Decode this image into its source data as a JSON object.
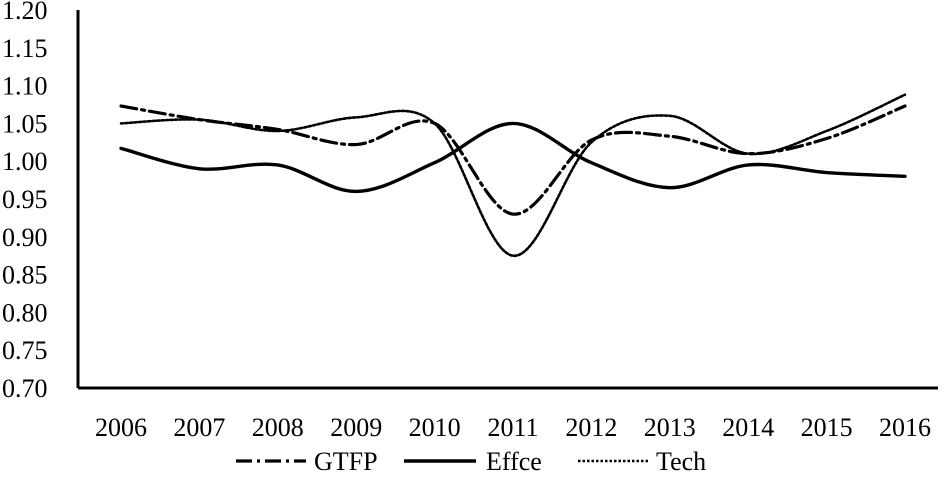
{
  "chart_data": {
    "type": "line",
    "title": "",
    "xlabel": "",
    "ylabel": "",
    "categories": [
      "2006",
      "2007",
      "2008",
      "2009",
      "2010",
      "2011",
      "2012",
      "2013",
      "2014",
      "2015",
      "2016"
    ],
    "ylim": [
      0.7,
      1.2
    ],
    "yticks": [
      "0.70",
      "0.75",
      "0.80",
      "0.85",
      "0.90",
      "0.95",
      "1.00",
      "1.05",
      "1.10",
      "1.15",
      "1.20"
    ],
    "grid": false,
    "legend_position": "bottom",
    "series": [
      {
        "name": "GTFP",
        "style": "dash-dot",
        "color": "#000000",
        "values": [
          1.073,
          1.055,
          1.042,
          1.022,
          1.05,
          0.93,
          1.028,
          1.033,
          1.01,
          1.03,
          1.073
        ]
      },
      {
        "name": "Effce",
        "style": "solid",
        "color": "#000000",
        "values": [
          1.017,
          0.99,
          0.995,
          0.96,
          0.998,
          1.05,
          0.998,
          0.965,
          0.995,
          0.985,
          0.98
        ]
      },
      {
        "name": "Tech",
        "style": "dotted",
        "color": "#000000",
        "values": [
          1.05,
          1.055,
          1.04,
          1.058,
          1.05,
          0.875,
          1.025,
          1.06,
          1.01,
          1.04,
          1.088
        ]
      }
    ]
  }
}
